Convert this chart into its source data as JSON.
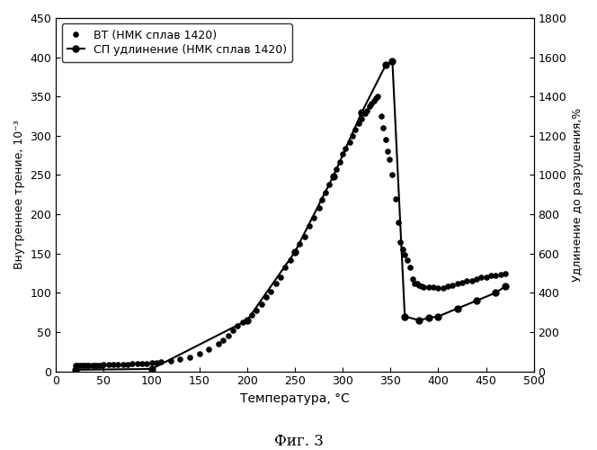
{
  "xlabel": "Температура, °C",
  "ylabel_left": "Внутреннее трение, 10⁻³",
  "ylabel_right": "Удлинение до разрушения,%",
  "xlim": [
    0,
    500
  ],
  "ylim_left": [
    0,
    450
  ],
  "ylim_right": [
    0,
    1800
  ],
  "xticks": [
    0,
    50,
    100,
    150,
    200,
    250,
    300,
    350,
    400,
    450,
    500
  ],
  "yticks_left": [
    0,
    50,
    100,
    150,
    200,
    250,
    300,
    350,
    400,
    450
  ],
  "yticks_right": [
    0,
    200,
    400,
    600,
    800,
    1000,
    1200,
    1400,
    1600,
    1800
  ],
  "fig_caption": "Фиг. 3",
  "legend_entries": [
    "ВТ (НМК сплав 1420)",
    "СП удлинение (НМК сплав 1420)"
  ],
  "scatter_color": "#000000",
  "line_color": "#000000",
  "background_color": "#ffffff",
  "scatter_x": [
    20,
    22,
    25,
    28,
    30,
    33,
    35,
    38,
    40,
    42,
    45,
    48,
    50,
    55,
    60,
    65,
    70,
    75,
    80,
    85,
    90,
    95,
    100,
    105,
    110,
    120,
    130,
    140,
    150,
    160,
    170,
    175,
    180,
    185,
    190,
    195,
    200,
    205,
    210,
    215,
    220,
    225,
    230,
    235,
    240,
    245,
    250,
    255,
    260,
    265,
    270,
    275,
    278,
    282,
    286,
    290,
    293,
    297,
    300,
    303,
    307,
    310,
    313,
    317,
    320,
    323,
    325,
    328,
    330,
    333,
    335,
    337,
    340,
    342,
    345,
    347,
    349,
    352,
    355,
    358,
    360,
    363,
    365,
    368,
    370,
    373,
    375,
    378,
    380,
    383,
    385,
    390,
    395,
    400,
    405,
    410,
    415,
    420,
    425,
    430,
    435,
    440,
    445,
    450,
    455,
    460,
    465,
    470
  ],
  "scatter_y": [
    8,
    8,
    7,
    8,
    8,
    8,
    7,
    8,
    8,
    8,
    7,
    8,
    9,
    9,
    9,
    9,
    9,
    9,
    10,
    10,
    10,
    10,
    11,
    11,
    12,
    13,
    15,
    18,
    22,
    28,
    35,
    40,
    45,
    52,
    58,
    63,
    65,
    72,
    78,
    85,
    95,
    102,
    112,
    120,
    132,
    142,
    152,
    162,
    172,
    185,
    196,
    208,
    218,
    228,
    238,
    248,
    258,
    267,
    277,
    284,
    292,
    300,
    308,
    316,
    322,
    328,
    332,
    338,
    341,
    345,
    348,
    350,
    325,
    310,
    295,
    280,
    270,
    250,
    220,
    190,
    165,
    155,
    148,
    142,
    132,
    118,
    112,
    112,
    110,
    108,
    107,
    107,
    107,
    106,
    106,
    108,
    110,
    112,
    113,
    115,
    115,
    118,
    120,
    120,
    122,
    122,
    123,
    124
  ],
  "line_x": [
    20,
    100,
    200,
    250,
    290,
    320,
    345,
    352,
    365,
    380,
    390,
    400,
    420,
    440,
    460,
    470
  ],
  "line_y_left": [
    2,
    3,
    65,
    152,
    248,
    330,
    390,
    395,
    70,
    65,
    68,
    70,
    80,
    90,
    100,
    108
  ]
}
